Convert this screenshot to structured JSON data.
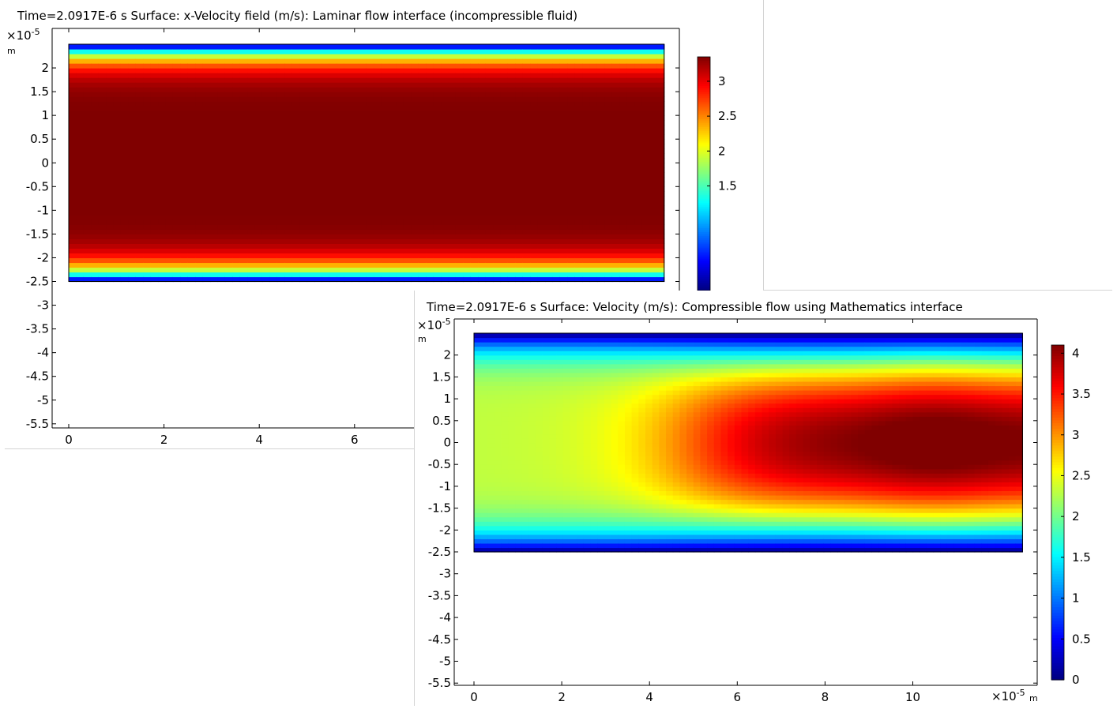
{
  "chart_data": [
    {
      "type": "heatmap",
      "title": "Time=2.0917E-6 s  Surface: x-Velocity field (m/s): Laminar flow interface (incompressible fluid)",
      "x_unit": "m",
      "y_unit": "m",
      "x_multiplier": "×10",
      "x_multiplier_exp": "-5",
      "y_multiplier": "×10",
      "y_multiplier_exp": "-5",
      "x_ticks": [
        "0",
        "2",
        "4",
        "6"
      ],
      "y_ticks": [
        "2",
        "1.5",
        "1",
        "0.5",
        "0",
        "-0.5",
        "-1",
        "-1.5",
        "-2",
        "-2.5",
        "-3",
        "-3.5",
        "-4",
        "-4.5",
        "-5",
        "-5.5"
      ],
      "x_range": [
        0,
        12.5
      ],
      "y_range": [
        -5.5,
        2.5
      ],
      "domain": {
        "x": [
          0,
          12.5
        ],
        "y": [
          -2.5,
          2.5
        ]
      },
      "field": "x-Velocity (m/s)",
      "field_profile": "parabolic in y, plateau near center",
      "colormap": "jet",
      "colorbar": {
        "min": 0,
        "max": 3.35,
        "ticks": [
          "3",
          "2.5",
          "2",
          "1.5"
        ],
        "label_values": [
          3,
          2.5,
          2,
          1.5
        ]
      }
    },
    {
      "type": "heatmap",
      "title": "Time=2.0917E-6 s  Surface: Velocity (m/s): Compressible flow using Mathematics interface",
      "x_unit": "m",
      "y_unit": "m",
      "x_multiplier": "×10",
      "x_multiplier_exp": "-5",
      "y_multiplier": "×10",
      "y_multiplier_exp": "-5",
      "x_ticks": [
        "0",
        "2",
        "4",
        "6",
        "8",
        "10"
      ],
      "y_ticks": [
        "2",
        "1.5",
        "1",
        "0.5",
        "0",
        "-0.5",
        "-1",
        "-1.5",
        "-2",
        "-2.5",
        "-3",
        "-3.5",
        "-4",
        "-4.5",
        "-5",
        "-5.5"
      ],
      "x_range": [
        0,
        12.5
      ],
      "y_range": [
        -5.5,
        2.5
      ],
      "domain": {
        "x": [
          0,
          12.5
        ],
        "y": [
          -2.5,
          2.5
        ]
      },
      "field": "Velocity (m/s)",
      "field_profile": "developing channel flow: ~2.3 m/s core at inlet, peak ~4.1 m/s near x=10",
      "colormap": "jet",
      "colorbar": {
        "min": 0,
        "max": 4.1,
        "ticks": [
          "4",
          "3.5",
          "3",
          "2.5",
          "2",
          "1.5",
          "1",
          "0.5",
          "0"
        ],
        "label_values": [
          4,
          3.5,
          3,
          2.5,
          2,
          1.5,
          1,
          0.5,
          0
        ]
      }
    }
  ]
}
